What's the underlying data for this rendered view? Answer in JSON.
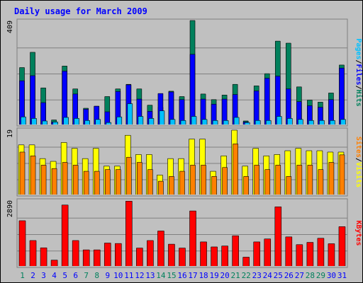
{
  "chart_data": {
    "type": "bar",
    "title": "Daily usage for March 2009",
    "categories": [
      "1",
      "2",
      "3",
      "4",
      "5",
      "6",
      "7",
      "8",
      "9",
      "10",
      "11",
      "12",
      "13",
      "14",
      "15",
      "16",
      "17",
      "18",
      "19",
      "20",
      "21",
      "22",
      "23",
      "24",
      "25",
      "26",
      "27",
      "28",
      "29",
      "30",
      "31"
    ],
    "weekend_days": [
      "1",
      "7",
      "8",
      "14",
      "15",
      "21",
      "22",
      "28",
      "29"
    ],
    "panels": [
      {
        "id": "top",
        "max_label": "409",
        "ymax": 409,
        "series": [
          {
            "name": "Hits",
            "color": "#00805c",
            "values": [
              224,
              284,
              144,
              18,
              230,
              140,
              64,
              72,
              110,
              140,
              158,
              140,
              76,
              68,
              131,
              110,
              409,
              120,
              98,
              116,
              158,
              14,
              152,
              200,
              328,
              320,
              148,
              96,
              88,
              124,
              234
            ]
          },
          {
            "name": "Files",
            "color": "#0000ff",
            "values": [
              172,
              192,
              86,
              10,
              210,
              120,
              60,
              72,
              50,
              130,
              156,
              100,
              52,
              122,
              128,
              98,
              276,
              100,
              80,
              100,
              118,
              10,
              132,
              182,
              190,
              140,
              90,
              74,
              68,
              98,
              222
            ]
          },
          {
            "name": "Pages",
            "color": "#00c0ff",
            "values": [
              30,
              24,
              14,
              10,
              28,
              24,
              16,
              20,
              8,
              30,
              82,
              32,
              24,
              54,
              20,
              16,
              32,
              20,
              16,
              16,
              28,
              8,
              16,
              16,
              32,
              24,
              20,
              16,
              16,
              16,
              20
            ]
          }
        ],
        "legend": [
          "Pages",
          "Files",
          "Hits"
        ]
      },
      {
        "id": "middle",
        "max_label": "19",
        "ymax": 19,
        "series": [
          {
            "name": "Visits",
            "color": "#ffff00",
            "values": [
              14.5,
              14.5,
              10.5,
              9.7,
              15.2,
              13.5,
              10.5,
              13.5,
              8.3,
              8.3,
              17.3,
              11.7,
              11.7,
              5.7,
              10.5,
              10.5,
              16.2,
              16.2,
              6.8,
              11.3,
              18.8,
              8.3,
              13.5,
              11.3,
              11.7,
              12.8,
              13.5,
              12.8,
              12.8,
              12.4,
              12.4
            ]
          },
          {
            "name": "Sites",
            "color": "#ff8000",
            "values": [
              12.4,
              11.3,
              8.6,
              7.6,
              9.4,
              8.6,
              6.8,
              6.8,
              7.3,
              7.3,
              10.9,
              9.4,
              7.3,
              3.9,
              5.3,
              6.8,
              8.6,
              8.6,
              5.3,
              7.9,
              14.8,
              5.3,
              8.6,
              7.3,
              8.6,
              5.3,
              8.6,
              8.6,
              7.3,
              9.4,
              11.6
            ]
          }
        ],
        "legend": [
          "Sites",
          "Visits"
        ]
      },
      {
        "id": "bottom",
        "max_label": "2890",
        "ymax": 2890,
        "series": [
          {
            "name": "KBytes",
            "color": "#ff0000",
            "values": [
              1990,
              1120,
              800,
              260,
              2680,
              1120,
              710,
              710,
              1010,
              990,
              2850,
              790,
              1120,
              1540,
              960,
              790,
              2420,
              1060,
              840,
              880,
              1330,
              390,
              1060,
              1190,
              2600,
              1280,
              940,
              1040,
              1220,
              980,
              1730
            ]
          }
        ],
        "legend": [
          "KBytes"
        ]
      }
    ]
  },
  "colors": {
    "background": "#c0c0c0",
    "frame": "#808080",
    "title": "#0000ff",
    "weekday_label": "#0000ff",
    "weekend_label": "#00805c",
    "gridline": "#808080"
  }
}
